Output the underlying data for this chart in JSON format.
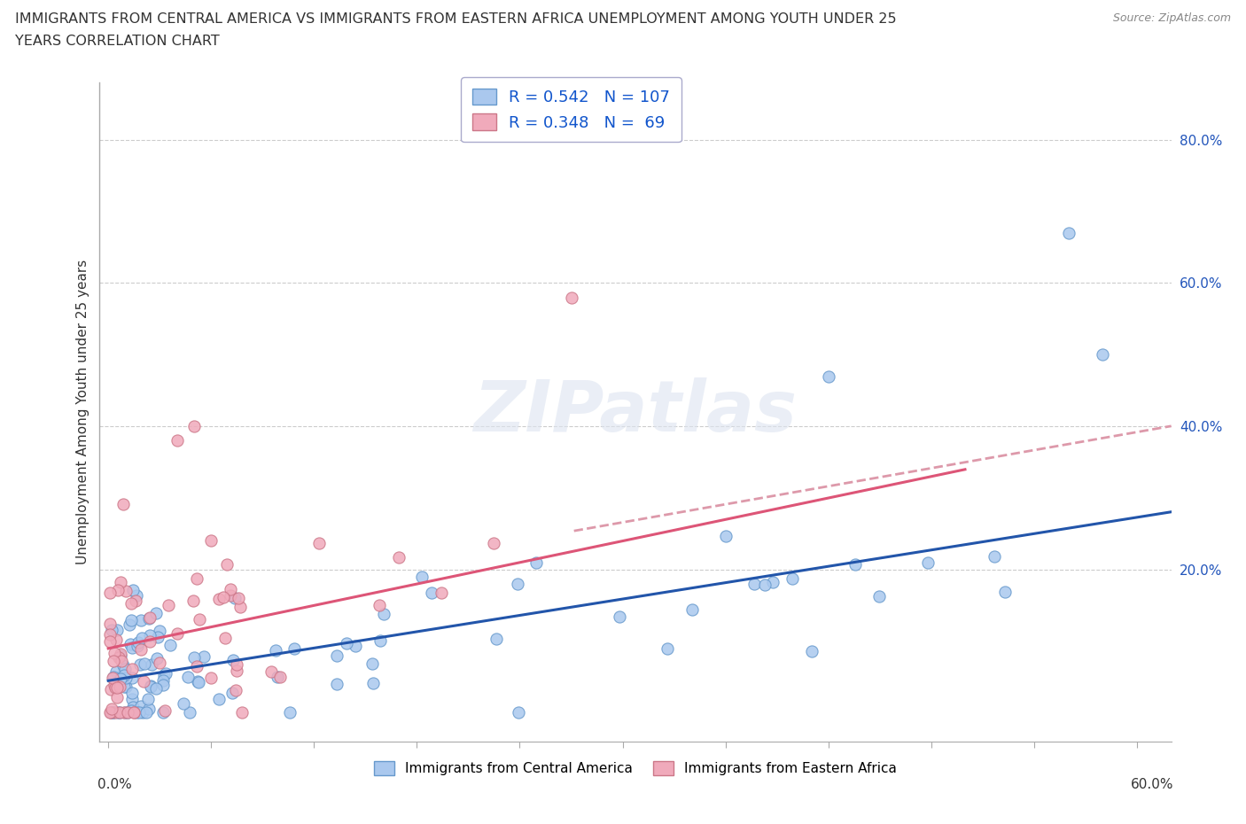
{
  "title_line1": "IMMIGRANTS FROM CENTRAL AMERICA VS IMMIGRANTS FROM EASTERN AFRICA UNEMPLOYMENT AMONG YOUTH UNDER 25",
  "title_line2": "YEARS CORRELATION CHART",
  "source": "Source: ZipAtlas.com",
  "ylabel": "Unemployment Among Youth under 25 years",
  "xlim": [
    -0.005,
    0.62
  ],
  "ylim": [
    -0.04,
    0.88
  ],
  "yticks": [
    0.0,
    0.2,
    0.4,
    0.6,
    0.8
  ],
  "ytick_labels": [
    "",
    "20.0%",
    "40.0%",
    "60.0%",
    "80.0%"
  ],
  "series1_color": "#aac8ee",
  "series1_edge": "#6699cc",
  "series2_color": "#f0aabb",
  "series2_edge": "#cc7788",
  "trend1_color": "#2255aa",
  "trend2_color": "#dd5577",
  "trend2_dash_color": "#dd99aa",
  "R1": 0.542,
  "N1": 107,
  "R2": 0.348,
  "N2": 69,
  "watermark": "ZIPatlas",
  "background_color": "#ffffff",
  "grid_color": "#cccccc",
  "seed": 123
}
